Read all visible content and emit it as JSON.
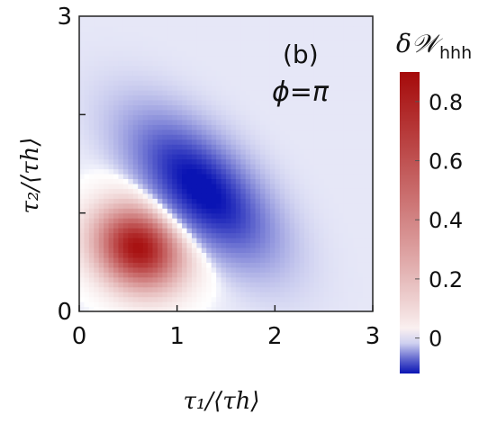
{
  "chart_data": {
    "type": "heatmap",
    "panel_label": "(b)",
    "annotation": "ϕ=π",
    "xlabel": "τ₁/⟨τh⟩",
    "ylabel": "τ₂/⟨τh⟩",
    "xlim": [
      0,
      3
    ],
    "ylim": [
      0,
      3
    ],
    "x_ticks": [
      0,
      1,
      2,
      3
    ],
    "y_ticks": [
      0,
      3
    ],
    "x_tick_labels": [
      "0",
      "1",
      "2",
      "3"
    ],
    "y_tick_labels": [
      "0",
      "3"
    ],
    "colorbar": {
      "title": "δ𝒲",
      "subscript": "hhh",
      "range": [
        -0.12,
        0.9
      ],
      "ticks": [
        0,
        0.2,
        0.4,
        0.6,
        0.8
      ],
      "tick_labels": [
        "0",
        "0.2",
        "0.4",
        "0.6",
        "0.8"
      ],
      "colors": {
        "negative": "#0a14b4",
        "zero": "#ffffff",
        "positive": "#a50a0a"
      }
    },
    "features": [
      {
        "sign": "positive",
        "peak_value": 0.88,
        "center": [
          0.6,
          0.65
        ]
      },
      {
        "sign": "negative",
        "peak_value": -0.12,
        "center": [
          1.25,
          1.25
        ]
      }
    ]
  }
}
